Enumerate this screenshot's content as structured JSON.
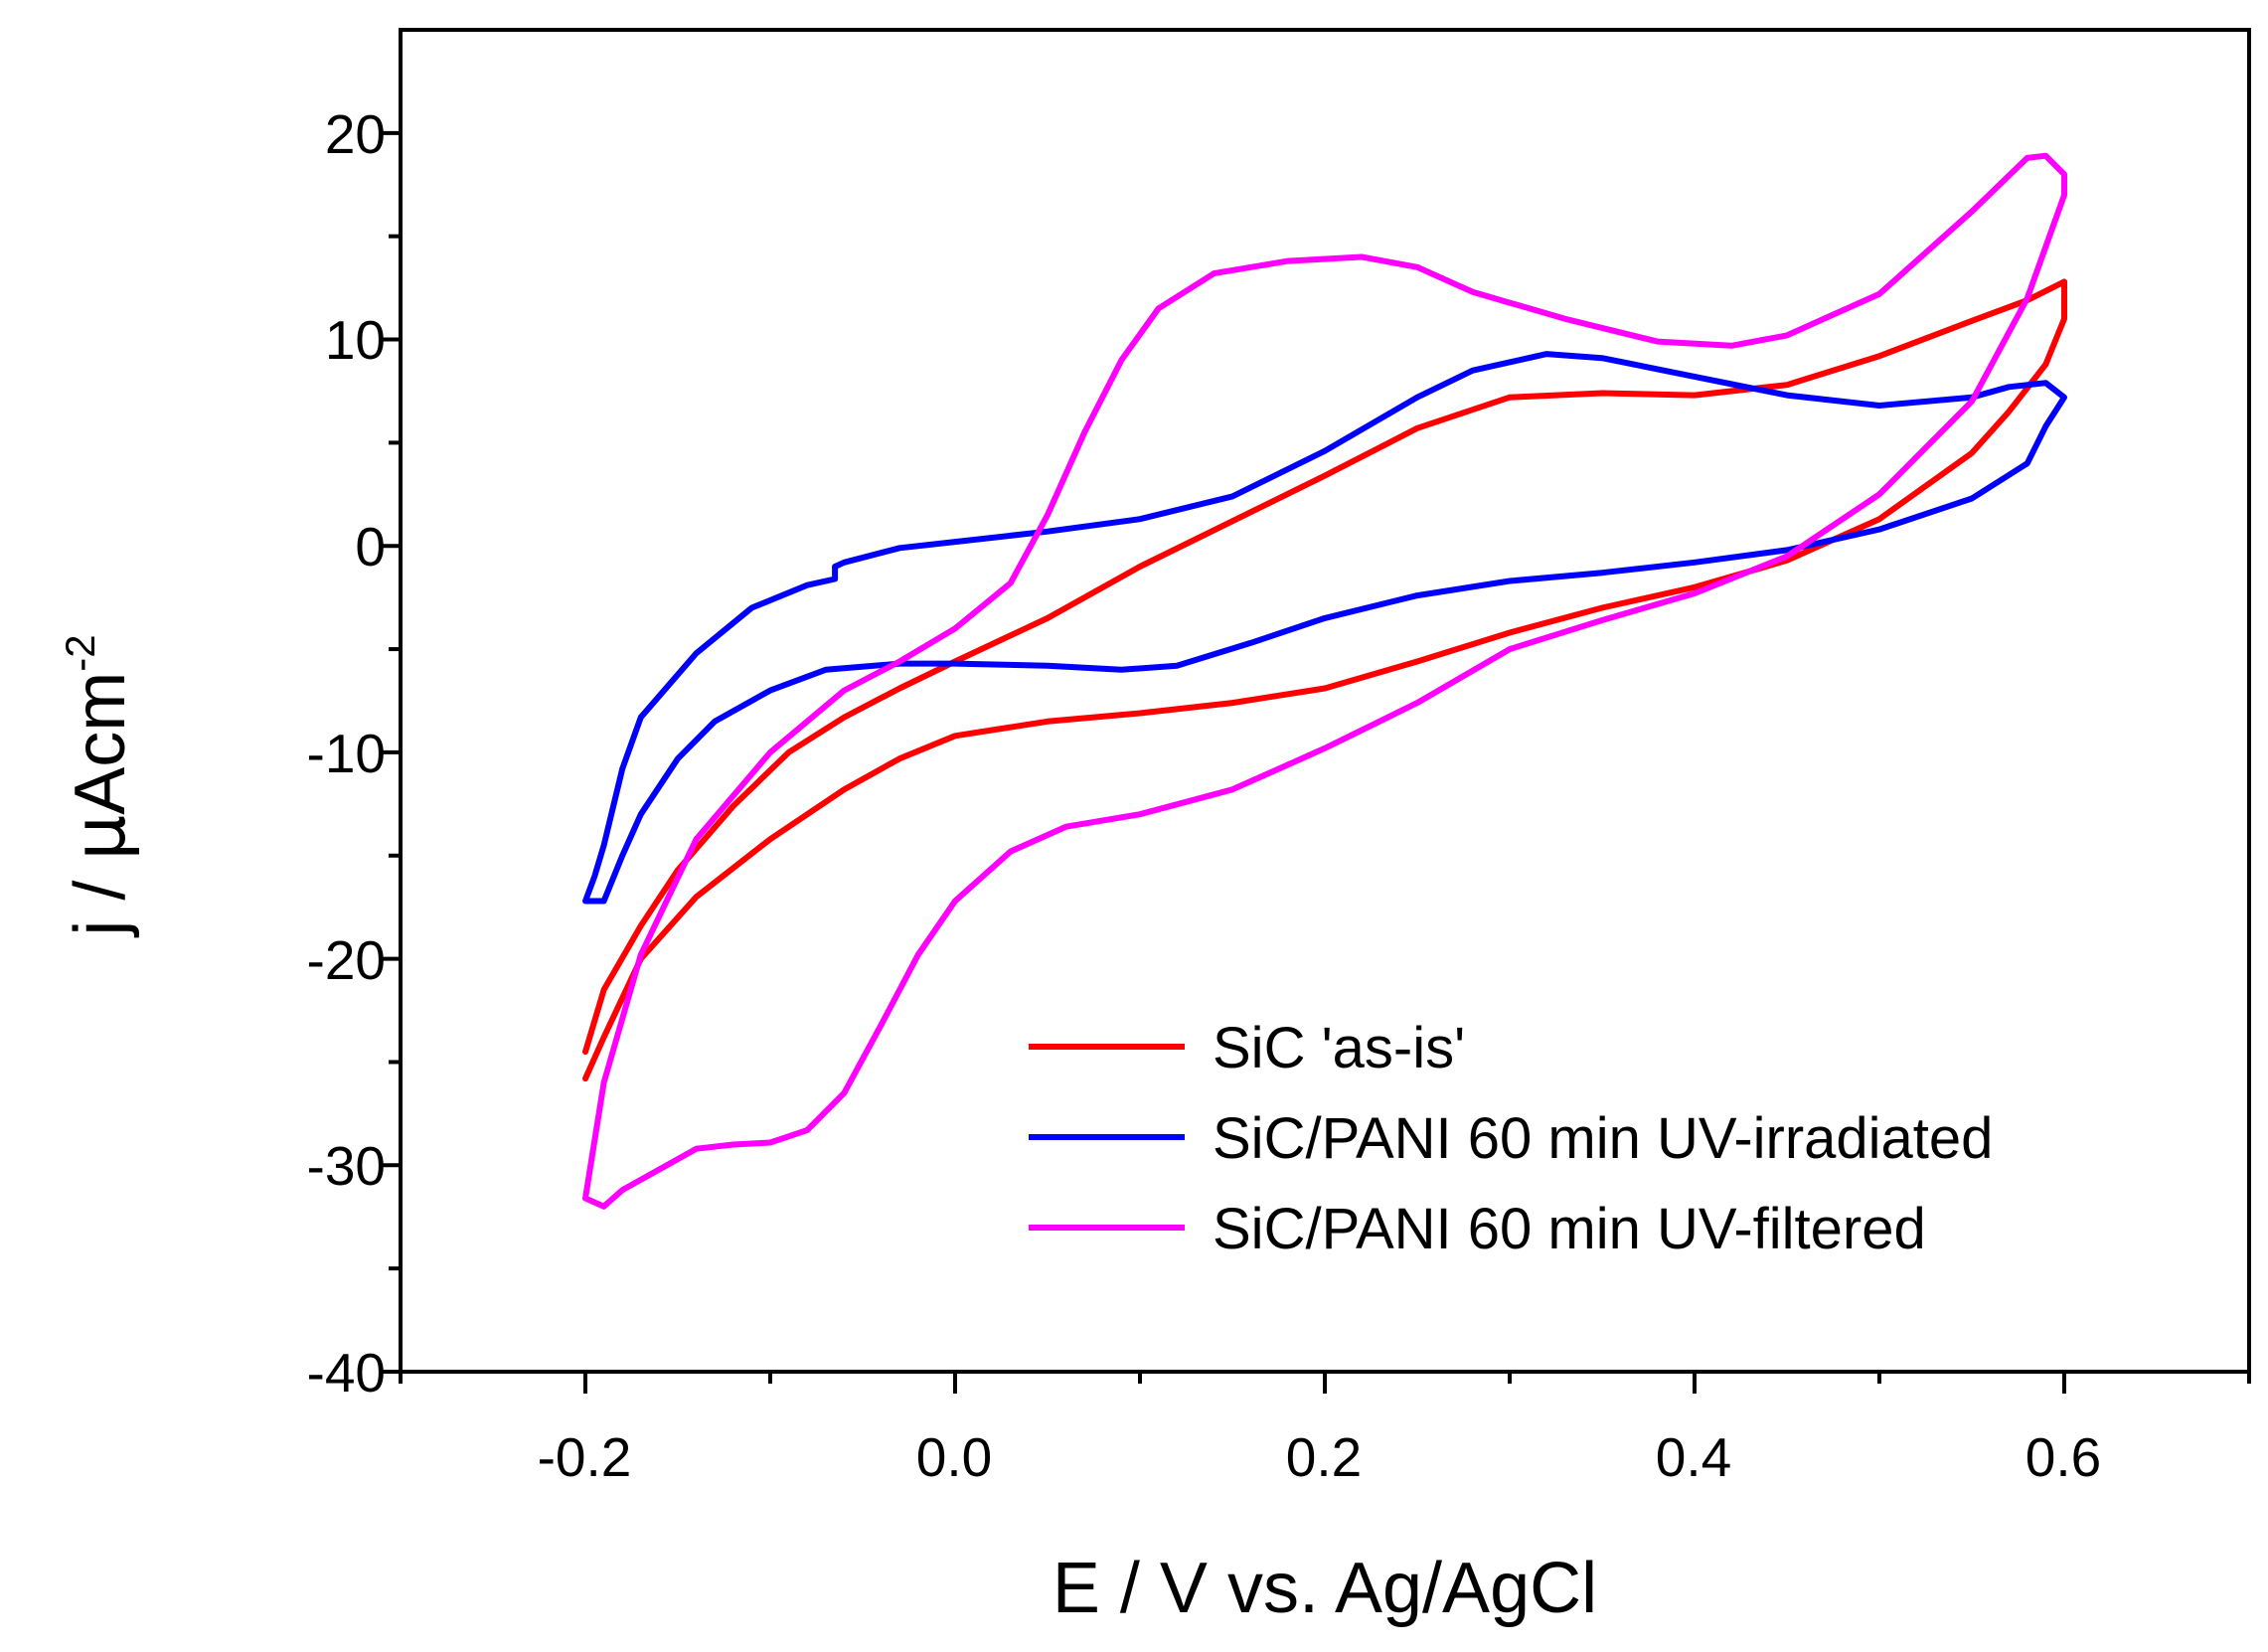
{
  "chart_data": {
    "type": "line",
    "title": "",
    "xlabel": "E / V vs. Ag/AgCl",
    "ylabel": {
      "prefix": "j / ",
      "mu": "μ",
      "unit": "Acm",
      "superscript": "-2"
    },
    "xlim": [
      -0.3,
      0.7
    ],
    "ylim": [
      -40,
      25
    ],
    "x_ticks": [
      "-0.2",
      "0.0",
      "0.2",
      "0.4",
      "0.6"
    ],
    "x_tick_values": [
      -0.2,
      0.0,
      0.2,
      0.4,
      0.6
    ],
    "y_ticks": [
      "-40",
      "-30",
      "-20",
      "-10",
      "0",
      "10",
      "20"
    ],
    "y_tick_values": [
      -40,
      -30,
      -20,
      -10,
      0,
      10,
      20
    ],
    "legend_position": "bottom-right",
    "series": [
      {
        "name": "SiC 'as-is'",
        "color": "#ff0000",
        "points": [
          [
            -0.2,
            -24.5
          ],
          [
            -0.19,
            -21.5
          ],
          [
            -0.17,
            -18.4
          ],
          [
            -0.15,
            -15.7
          ],
          [
            -0.12,
            -12.6
          ],
          [
            -0.09,
            -10.0
          ],
          [
            -0.06,
            -8.3
          ],
          [
            -0.03,
            -6.9
          ],
          [
            0.0,
            -5.6
          ],
          [
            0.05,
            -3.5
          ],
          [
            0.1,
            -1.0
          ],
          [
            0.15,
            1.2
          ],
          [
            0.2,
            3.4
          ],
          [
            0.25,
            5.7
          ],
          [
            0.3,
            7.2
          ],
          [
            0.35,
            7.4
          ],
          [
            0.4,
            7.3
          ],
          [
            0.45,
            7.8
          ],
          [
            0.5,
            9.2
          ],
          [
            0.55,
            10.9
          ],
          [
            0.58,
            11.9
          ],
          [
            0.6,
            12.8
          ],
          [
            0.6,
            11.0
          ],
          [
            0.59,
            8.8
          ],
          [
            0.57,
            6.5
          ],
          [
            0.55,
            4.5
          ],
          [
            0.5,
            1.3
          ],
          [
            0.45,
            -0.7
          ],
          [
            0.4,
            -2.0
          ],
          [
            0.35,
            -3.0
          ],
          [
            0.3,
            -4.2
          ],
          [
            0.25,
            -5.6
          ],
          [
            0.2,
            -6.9
          ],
          [
            0.15,
            -7.6
          ],
          [
            0.1,
            -8.1
          ],
          [
            0.05,
            -8.5
          ],
          [
            0.0,
            -9.2
          ],
          [
            -0.03,
            -10.3
          ],
          [
            -0.06,
            -11.8
          ],
          [
            -0.1,
            -14.2
          ],
          [
            -0.14,
            -17.0
          ],
          [
            -0.17,
            -20.0
          ],
          [
            -0.19,
            -23.8
          ],
          [
            -0.2,
            -25.8
          ]
        ]
      },
      {
        "name": "SiC/PANI 60 min UV-irradiated",
        "color": "#0000ff",
        "points": [
          [
            -0.2,
            -17.2
          ],
          [
            -0.19,
            -17.2
          ],
          [
            -0.18,
            -15.0
          ],
          [
            -0.17,
            -13.0
          ],
          [
            -0.15,
            -10.3
          ],
          [
            -0.13,
            -8.5
          ],
          [
            -0.1,
            -7.0
          ],
          [
            -0.07,
            -6.0
          ],
          [
            -0.03,
            -5.7
          ],
          [
            0.0,
            -5.7
          ],
          [
            0.05,
            -5.8
          ],
          [
            0.09,
            -6.0
          ],
          [
            0.12,
            -5.8
          ],
          [
            0.16,
            -4.7
          ],
          [
            0.2,
            -3.5
          ],
          [
            0.25,
            -2.4
          ],
          [
            0.3,
            -1.7
          ],
          [
            0.35,
            -1.3
          ],
          [
            0.4,
            -0.8
          ],
          [
            0.45,
            -0.2
          ],
          [
            0.5,
            0.8
          ],
          [
            0.55,
            2.3
          ],
          [
            0.58,
            4.0
          ],
          [
            0.59,
            5.8
          ],
          [
            0.6,
            7.2
          ],
          [
            0.59,
            7.9
          ],
          [
            0.57,
            7.7
          ],
          [
            0.55,
            7.2
          ],
          [
            0.5,
            6.8
          ],
          [
            0.45,
            7.3
          ],
          [
            0.4,
            8.2
          ],
          [
            0.35,
            9.1
          ],
          [
            0.32,
            9.3
          ],
          [
            0.28,
            8.5
          ],
          [
            0.25,
            7.2
          ],
          [
            0.2,
            4.6
          ],
          [
            0.15,
            2.4
          ],
          [
            0.1,
            1.3
          ],
          [
            0.05,
            0.7
          ],
          [
            0.0,
            0.2
          ],
          [
            -0.03,
            -0.1
          ],
          [
            -0.06,
            -0.8
          ],
          [
            -0.065,
            -1.0
          ],
          [
            -0.065,
            -1.6
          ],
          [
            -0.08,
            -1.9
          ],
          [
            -0.11,
            -3.0
          ],
          [
            -0.14,
            -5.2
          ],
          [
            -0.17,
            -8.3
          ],
          [
            -0.18,
            -10.8
          ],
          [
            -0.19,
            -14.5
          ],
          [
            -0.195,
            -16.0
          ],
          [
            -0.2,
            -17.2
          ]
        ]
      },
      {
        "name": "SiC/PANI 60 min UV-filtered",
        "color": "#ff00ff",
        "points": [
          [
            -0.2,
            -31.6
          ],
          [
            -0.19,
            -32.0
          ],
          [
            -0.18,
            -31.2
          ],
          [
            -0.16,
            -30.2
          ],
          [
            -0.14,
            -29.2
          ],
          [
            -0.12,
            -29.0
          ],
          [
            -0.1,
            -28.9
          ],
          [
            -0.08,
            -28.3
          ],
          [
            -0.06,
            -26.5
          ],
          [
            -0.04,
            -23.2
          ],
          [
            -0.02,
            -19.8
          ],
          [
            0.0,
            -17.2
          ],
          [
            0.03,
            -14.8
          ],
          [
            0.06,
            -13.6
          ],
          [
            0.1,
            -13.0
          ],
          [
            0.15,
            -11.8
          ],
          [
            0.2,
            -9.8
          ],
          [
            0.25,
            -7.6
          ],
          [
            0.3,
            -5.0
          ],
          [
            0.35,
            -3.6
          ],
          [
            0.4,
            -2.3
          ],
          [
            0.45,
            -0.5
          ],
          [
            0.5,
            2.5
          ],
          [
            0.55,
            7.0
          ],
          [
            0.58,
            12.0
          ],
          [
            0.6,
            17.0
          ],
          [
            0.6,
            18.0
          ],
          [
            0.59,
            18.9
          ],
          [
            0.58,
            18.8
          ],
          [
            0.55,
            16.2
          ],
          [
            0.5,
            12.2
          ],
          [
            0.45,
            10.2
          ],
          [
            0.42,
            9.7
          ],
          [
            0.38,
            9.9
          ],
          [
            0.33,
            11.0
          ],
          [
            0.28,
            12.3
          ],
          [
            0.25,
            13.5
          ],
          [
            0.22,
            14.0
          ],
          [
            0.18,
            13.8
          ],
          [
            0.14,
            13.2
          ],
          [
            0.11,
            11.5
          ],
          [
            0.09,
            9.0
          ],
          [
            0.07,
            5.5
          ],
          [
            0.05,
            1.5
          ],
          [
            0.03,
            -1.8
          ],
          [
            0.0,
            -4.0
          ],
          [
            -0.03,
            -5.6
          ],
          [
            -0.06,
            -7.0
          ],
          [
            -0.1,
            -10.0
          ],
          [
            -0.14,
            -14.2
          ],
          [
            -0.17,
            -19.8
          ],
          [
            -0.19,
            -26.0
          ],
          [
            -0.2,
            -31.6
          ]
        ]
      }
    ]
  }
}
